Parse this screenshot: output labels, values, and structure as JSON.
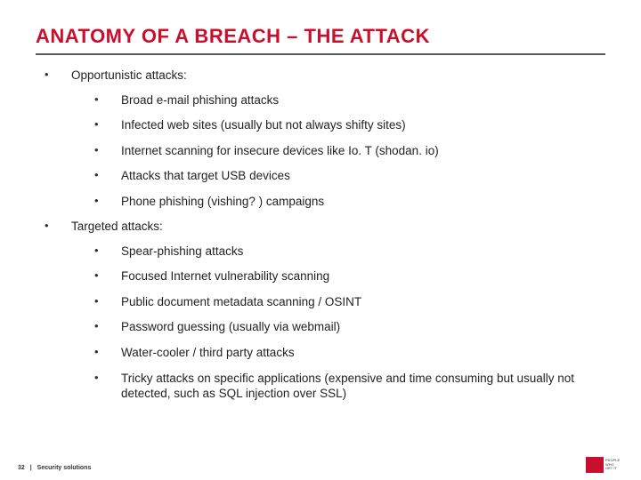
{
  "title": "ANATOMY OF A BREACH – THE ATTACK",
  "colors": {
    "title": "#c8102e",
    "rule": "#5a5a5a",
    "text": "#222222",
    "logo_bg": "#c8102e"
  },
  "sections": [
    {
      "label": "Opportunistic attacks:",
      "items": [
        "Broad e-mail phishing attacks",
        "Infected web sites (usually but not always shifty sites)",
        "Internet scanning for insecure devices like Io. T (shodan. io)",
        "Attacks that target USB devices",
        "Phone phishing (vishing? ) campaigns"
      ]
    },
    {
      "label": "Targeted attacks:",
      "items": [
        "Spear-phishing attacks",
        "Focused Internet vulnerability scanning",
        "Public document metadata scanning / OSINT",
        "Password guessing (usually via webmail)",
        "Water-cooler / third party attacks",
        "Tricky attacks on specific applications (expensive and time consuming but usually not detected, such as SQL injection over SSL)"
      ]
    }
  ],
  "footer": {
    "page": "32",
    "separator": "|",
    "label": "Security solutions"
  },
  "logo_lines": [
    "PEOPLE",
    "WHO",
    "GET IT"
  ]
}
